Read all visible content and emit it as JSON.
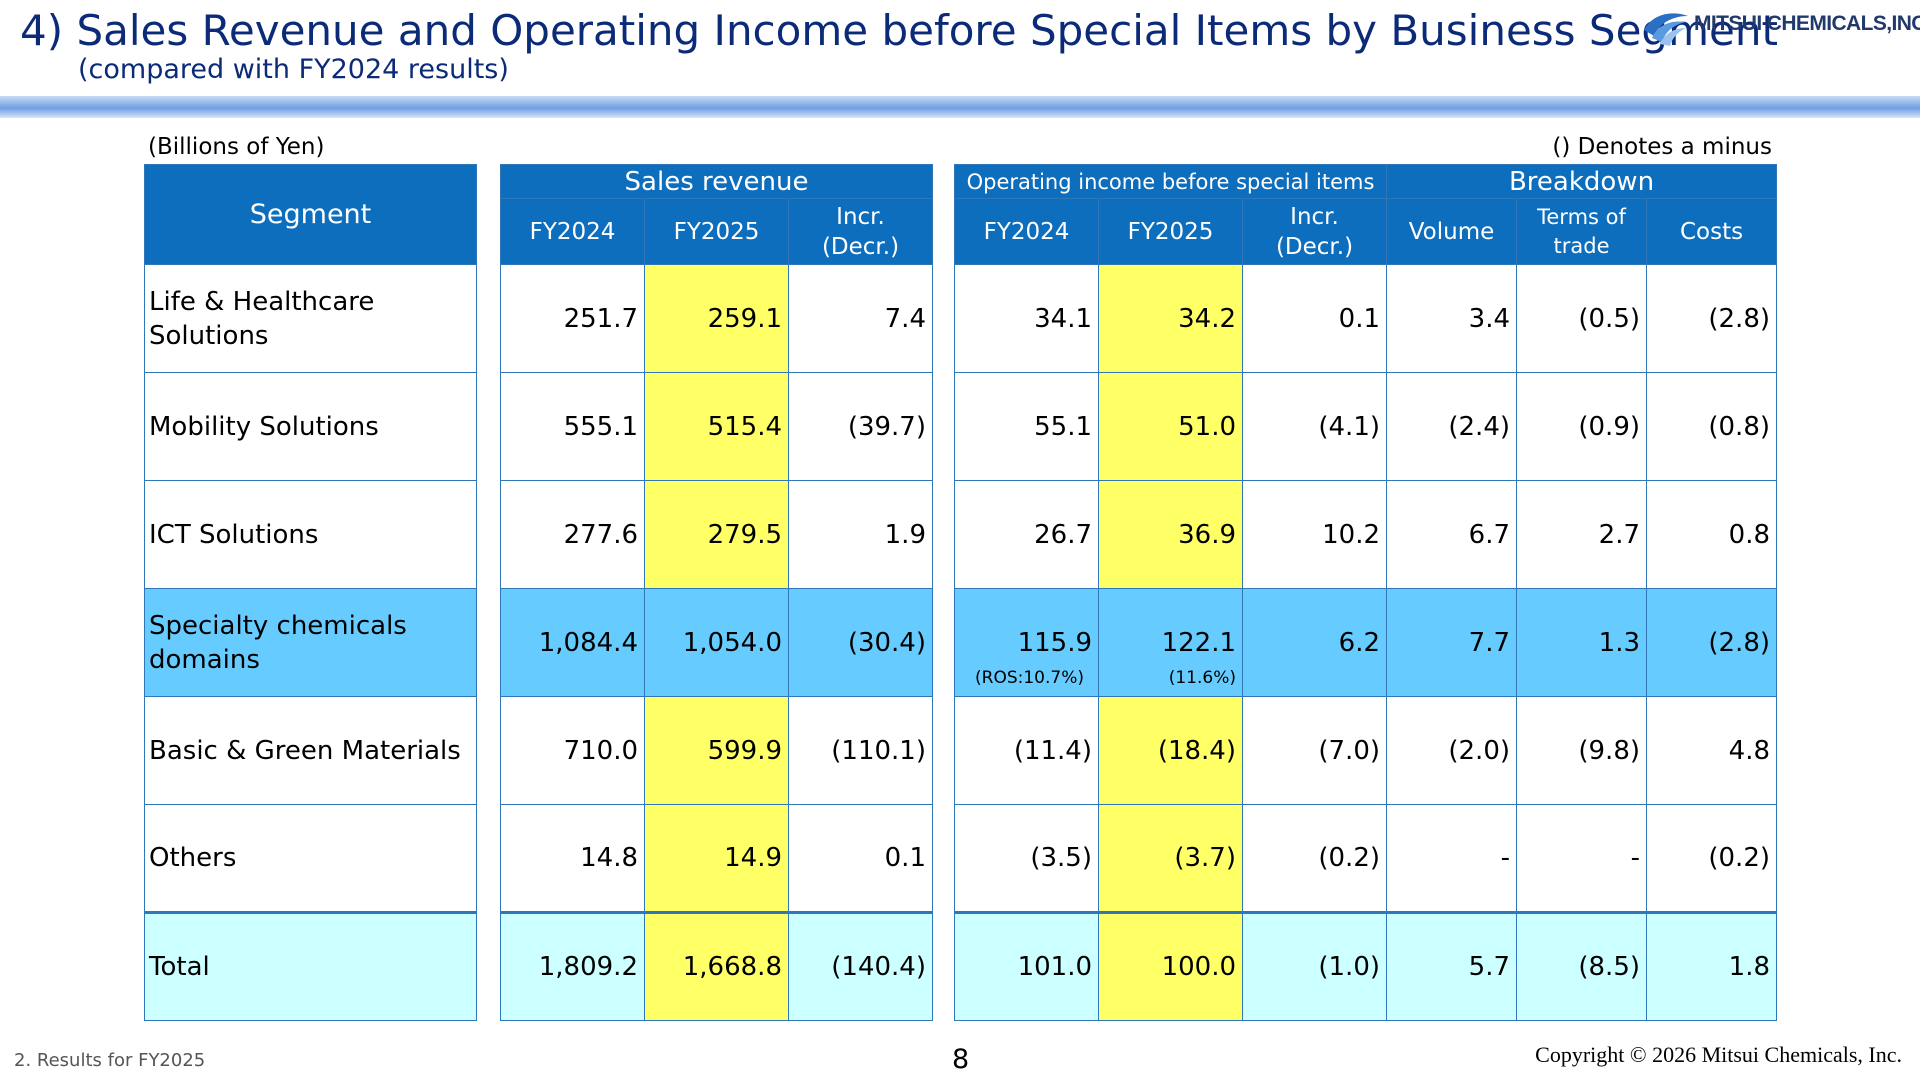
{
  "header": {
    "title": "4) Sales Revenue and Operating Income before Special Items by Business Segment",
    "subtitle": "(compared with FY2024 results)",
    "logo_text": "MITSUI CHEMICALS,INC."
  },
  "notes": {
    "unit": "(Billions of Yen)",
    "minus": "() Denotes a minus"
  },
  "segment_table": {
    "header": "Segment",
    "rows": [
      "Life & Healthcare Solutions",
      "Mobility Solutions",
      "ICT Solutions",
      "Specialty chemicals domains",
      "Basic & Green Materials",
      "Others",
      "Total"
    ]
  },
  "sales_table": {
    "group": "Sales revenue",
    "cols": [
      "FY2024",
      "FY2025",
      "Incr.\n(Decr.)"
    ],
    "rows": [
      [
        "251.7",
        "259.1",
        "7.4"
      ],
      [
        "555.1",
        "515.4",
        "(39.7)"
      ],
      [
        "277.6",
        "279.5",
        "1.9"
      ],
      [
        "1,084.4",
        "1,054.0",
        "(30.4)"
      ],
      [
        "710.0",
        "599.9",
        "(110.1)"
      ],
      [
        "14.8",
        "14.9",
        "0.1"
      ],
      [
        "1,809.2",
        "1,668.8",
        "(140.4)"
      ]
    ]
  },
  "income_table": {
    "group1": "Operating income before special items",
    "group2": "Breakdown",
    "cols": [
      "FY2024",
      "FY2025",
      "Incr.\n(Decr.)",
      "Volume",
      "Terms of\ntrade",
      "Costs"
    ],
    "rows": [
      [
        "34.1",
        "34.2",
        "0.1",
        "3.4",
        "(0.5)",
        "(2.8)"
      ],
      [
        "55.1",
        "51.0",
        "(4.1)",
        "(2.4)",
        "(0.9)",
        "(0.8)"
      ],
      [
        "26.7",
        "36.9",
        "10.2",
        "6.7",
        "2.7",
        "0.8"
      ],
      [
        "115.9",
        "122.1",
        "6.2",
        "7.7",
        "1.3",
        "(2.8)"
      ],
      [
        "(11.4)",
        "(18.4)",
        "(7.0)",
        "(2.0)",
        "(9.8)",
        "4.8"
      ],
      [
        "(3.5)",
        "(3.7)",
        "(0.2)",
        "-",
        "-",
        "(0.2)"
      ],
      [
        "101.0",
        "100.0",
        "(1.0)",
        "5.7",
        "(8.5)",
        "1.8"
      ]
    ],
    "ros_fy2024": "(ROS:10.7%)",
    "ros_fy2025": "(11.6%)"
  },
  "footer": {
    "section": "2. Results for FY2025",
    "page": "8",
    "copyright": "Copyright © 2026 Mitsui Chemicals, Inc."
  }
}
